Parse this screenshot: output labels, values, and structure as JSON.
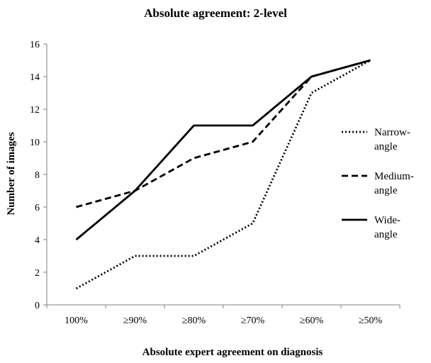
{
  "chart_data": {
    "type": "line",
    "title": "Absolute agreement: 2-level",
    "xlabel": "Absolute expert agreement on diagnosis",
    "ylabel": "Number of images",
    "categories": [
      "100%",
      "≥90%",
      "≥80%",
      "≥70%",
      "≥60%",
      "≥50%"
    ],
    "ylim": [
      0,
      16
    ],
    "yticks": [
      0,
      2,
      4,
      6,
      8,
      10,
      12,
      14,
      16
    ],
    "grid": false,
    "legend_position": "right",
    "series": [
      {
        "name": "Narrow-angle",
        "legend_lines": [
          "Narrow-",
          "angle"
        ],
        "style": "dotted",
        "color": "#000000",
        "values": [
          1,
          3,
          3,
          5,
          13,
          15
        ]
      },
      {
        "name": "Medium-angle",
        "legend_lines": [
          "Medium-",
          "angle"
        ],
        "style": "dashed",
        "color": "#000000",
        "values": [
          6,
          7,
          9,
          10,
          14,
          15
        ]
      },
      {
        "name": "Wide-angle",
        "legend_lines": [
          "Wide-",
          "angle"
        ],
        "style": "solid",
        "color": "#000000",
        "values": [
          4,
          7,
          11,
          11,
          14,
          15
        ]
      }
    ]
  }
}
